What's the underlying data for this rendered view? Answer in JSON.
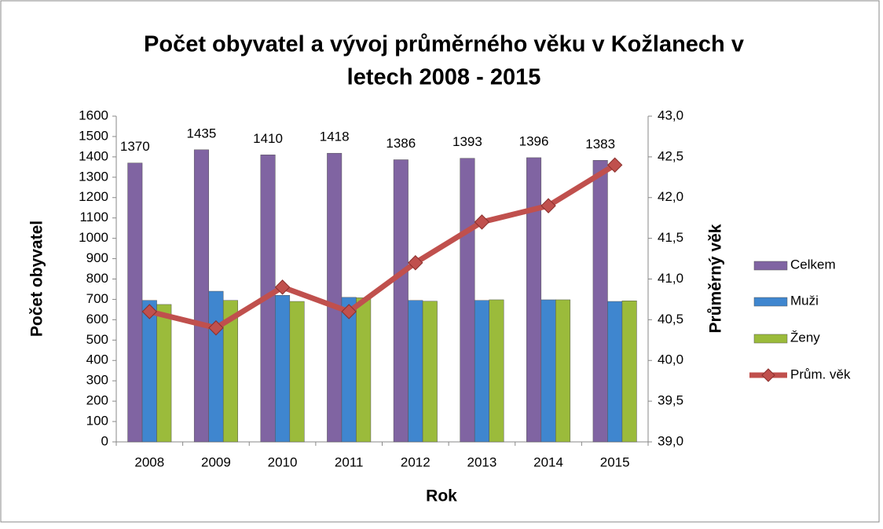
{
  "chart_data": {
    "type": "bar-line",
    "title": [
      "Počet obyvatel a vývoj průměrného věku v Kožlanech v",
      "letech 2008 - 2015"
    ],
    "x_label": "Rok",
    "y_label": "Počet obyvatel",
    "y2_label": "Průměrný věk",
    "categories": [
      "2008",
      "2009",
      "2010",
      "2011",
      "2012",
      "2013",
      "2014",
      "2015"
    ],
    "series": [
      {
        "name": "Celkem",
        "type": "bar",
        "color": "#8064a2",
        "values": [
          1370,
          1435,
          1410,
          1418,
          1386,
          1393,
          1396,
          1383
        ]
      },
      {
        "name": "Muži",
        "type": "bar",
        "color": "#3f86cf",
        "values": [
          695,
          740,
          720,
          710,
          695,
          695,
          698,
          690
        ]
      },
      {
        "name": "Ženy",
        "type": "bar",
        "color": "#9bbb3b",
        "values": [
          675,
          695,
          690,
          708,
          691,
          698,
          698,
          693
        ]
      },
      {
        "name": "Prům. věk",
        "type": "line",
        "axis": "y2",
        "color": "#c0504d",
        "values": [
          40.6,
          40.4,
          40.9,
          40.6,
          41.2,
          41.7,
          41.9,
          42.4
        ]
      }
    ],
    "data_labels_series": 0,
    "ylim": [
      0,
      1600
    ],
    "yticks": [
      0,
      100,
      200,
      300,
      400,
      500,
      600,
      700,
      800,
      900,
      1000,
      1100,
      1200,
      1300,
      1400,
      1500,
      1600
    ],
    "y2lim": [
      39,
      43
    ],
    "y2ticks": [
      {
        "value": 39,
        "label": "39,0"
      },
      {
        "value": 39.5,
        "label": "39,5"
      },
      {
        "value": 40,
        "label": "40,0"
      },
      {
        "value": 40.5,
        "label": "40,5"
      },
      {
        "value": 41,
        "label": "41,0"
      },
      {
        "value": 41.5,
        "label": "41,5"
      },
      {
        "value": 42,
        "label": "42,0"
      },
      {
        "value": 42.5,
        "label": "42,5"
      },
      {
        "value": 43,
        "label": "43,0"
      }
    ],
    "grid": false,
    "legend": "right"
  }
}
